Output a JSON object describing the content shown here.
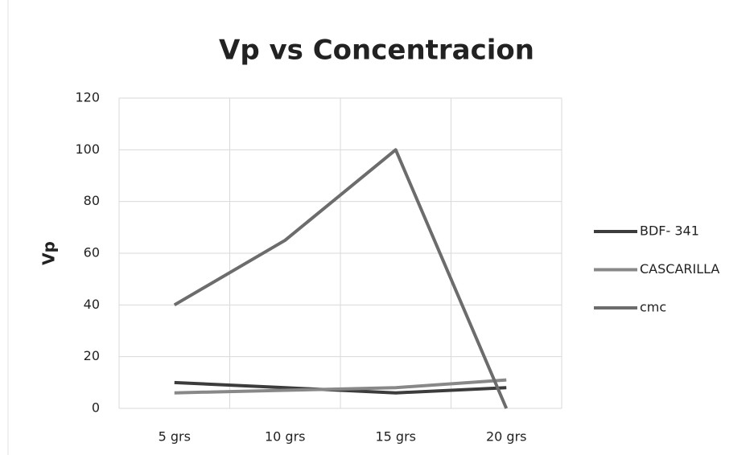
{
  "chart_data": {
    "type": "line",
    "title": "Vp vs Concentracion",
    "y_label": "Vp",
    "categories": [
      "5 grs",
      "10 grs",
      "15 grs",
      "20 grs"
    ],
    "series": [
      {
        "name": "BDF- 341",
        "color": "#3c3c3c",
        "values": [
          10,
          8,
          6,
          8
        ]
      },
      {
        "name": "CASCARILLA",
        "color": "#888888",
        "values": [
          6,
          7,
          8,
          11
        ]
      },
      {
        "name": "cmc",
        "color": "#6c6c6c",
        "values": [
          40,
          65,
          100,
          0
        ]
      }
    ],
    "ylim": [
      0,
      120
    ],
    "yticks": [
      0,
      20,
      40,
      60,
      80,
      100,
      120
    ],
    "grid": true,
    "legend": "right"
  }
}
